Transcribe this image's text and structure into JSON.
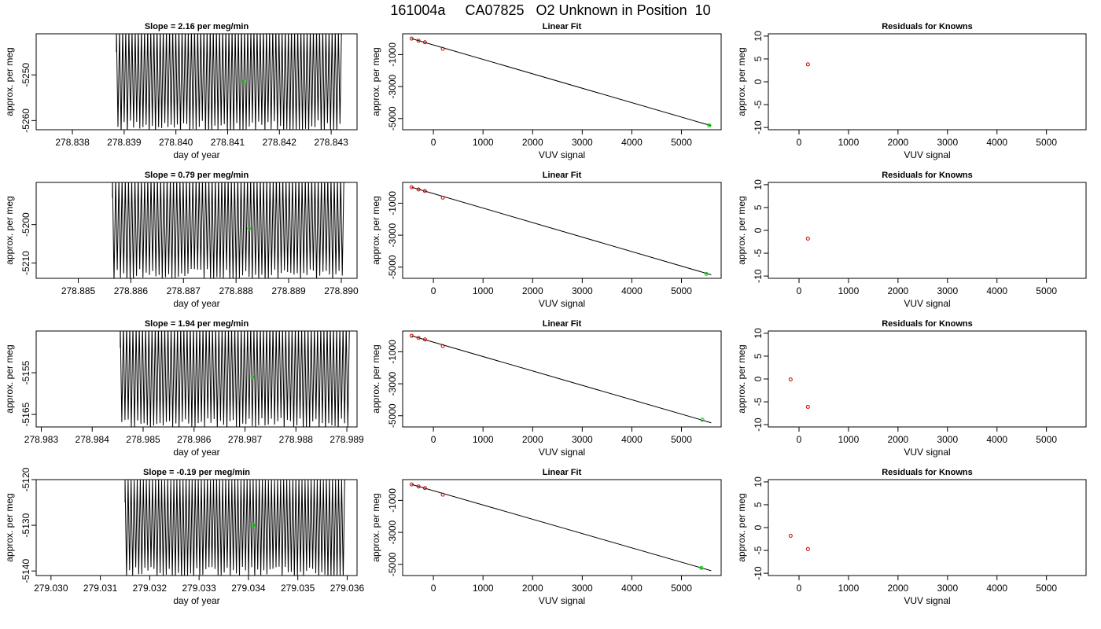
{
  "title": "161004a     CA07825   O2 Unknown in Position  10",
  "colors": {
    "trace": "#000000",
    "unknown_point": "#22cc22",
    "known_point": "#cc0000"
  },
  "chart_data": [
    {
      "type": "line",
      "title": "Slope =  2.16  per meg/min",
      "xlabel": "day of year",
      "ylabel": "approx. per meg",
      "xlim": [
        278.8373,
        278.8435
      ],
      "ylim": [
        -5262,
        -5241
      ],
      "xticks": [
        "278.838",
        "278.839",
        "278.840",
        "278.841",
        "278.842",
        "278.843"
      ],
      "yticks": [
        -5250,
        -5260
      ],
      "trace": {
        "x_start": 278.83885,
        "x_end": 278.8432,
        "y_low": -5262,
        "y_high": -5241,
        "cycles": 72
      },
      "highlight_point": {
        "x": 278.84132,
        "y": -5251.5
      }
    },
    {
      "type": "scatter",
      "title": "Linear Fit",
      "xlabel": "VUV signal",
      "ylabel": "approx. per meg",
      "xlim": [
        -620,
        5800
      ],
      "ylim": [
        -5700,
        300
      ],
      "xticks": [
        0,
        1000,
        2000,
        3000,
        4000,
        5000
      ],
      "yticks": [
        -1000,
        -3000,
        -5000
      ],
      "knowns": [
        {
          "x": -440,
          "y": 0
        },
        {
          "x": -300,
          "y": -130
        },
        {
          "x": -170,
          "y": -230
        },
        {
          "x": 190,
          "y": -640
        }
      ],
      "unknown": {
        "x": 5560,
        "y": -5430
      },
      "fit_line": {
        "x": [
          -440,
          5600
        ],
        "y": [
          0,
          -5450
        ]
      }
    },
    {
      "type": "scatter",
      "title": "Residuals for Knowns",
      "xlabel": "VUV signal",
      "ylabel": "approx. per meg",
      "xlim": [
        -620,
        5800
      ],
      "ylim": [
        -10.5,
        10.5
      ],
      "xticks": [
        0,
        1000,
        2000,
        3000,
        4000,
        5000
      ],
      "yticks": [
        10,
        5,
        0,
        -5,
        -10
      ],
      "points": [
        {
          "x": 180,
          "y": 3.8
        }
      ]
    },
    {
      "type": "line",
      "title": "Slope =  0.79  per meg/min",
      "xlabel": "day of year",
      "ylabel": "approx. per meg",
      "xlim": [
        278.8842,
        278.8903
      ],
      "ylim": [
        -5214,
        -5189
      ],
      "xticks": [
        "278.885",
        "278.886",
        "278.887",
        "278.888",
        "278.889",
        "278.890"
      ],
      "yticks": [
        -5200,
        -5210
      ],
      "trace": {
        "x_start": 278.88565,
        "x_end": 278.89005,
        "y_low": -5214,
        "y_high": -5189,
        "cycles": 72
      },
      "highlight_point": {
        "x": 278.88825,
        "y": -5201
      }
    },
    {
      "type": "scatter",
      "title": "Linear Fit",
      "xlabel": "VUV signal",
      "ylabel": "approx. per meg",
      "xlim": [
        -620,
        5800
      ],
      "ylim": [
        -5700,
        300
      ],
      "xticks": [
        0,
        1000,
        2000,
        3000,
        4000,
        5000
      ],
      "yticks": [
        -1000,
        -3000,
        -5000
      ],
      "knowns": [
        {
          "x": -440,
          "y": 0
        },
        {
          "x": -300,
          "y": -140
        },
        {
          "x": -170,
          "y": -240
        },
        {
          "x": 190,
          "y": -650
        }
      ],
      "unknown": {
        "x": 5500,
        "y": -5420
      },
      "fit_line": {
        "x": [
          -440,
          5600
        ],
        "y": [
          0,
          -5480
        ]
      }
    },
    {
      "type": "scatter",
      "title": "Residuals for Knowns",
      "xlabel": "VUV signal",
      "ylabel": "approx. per meg",
      "xlim": [
        -620,
        5800
      ],
      "ylim": [
        -10.5,
        10.5
      ],
      "xticks": [
        0,
        1000,
        2000,
        3000,
        4000,
        5000
      ],
      "yticks": [
        10,
        5,
        0,
        -5,
        -10
      ],
      "points": [
        {
          "x": 180,
          "y": -1.8
        }
      ]
    },
    {
      "type": "line",
      "title": "Slope =  1.94  per meg/min",
      "xlabel": "day of year",
      "ylabel": "approx. per meg",
      "xlim": [
        278.9829,
        278.9892
      ],
      "ylim": [
        -5168,
        -5145
      ],
      "xticks": [
        "278.983",
        "278.984",
        "278.985",
        "278.986",
        "278.987",
        "278.988",
        "278.989"
      ],
      "yticks": [
        -5155,
        -5165
      ],
      "trace": {
        "x_start": 278.98455,
        "x_end": 278.98905,
        "y_low": -5168,
        "y_high": -5145,
        "cycles": 72
      },
      "highlight_point": {
        "x": 278.98715,
        "y": -5156
      }
    },
    {
      "type": "scatter",
      "title": "Linear Fit",
      "xlabel": "VUV signal",
      "ylabel": "approx. per meg",
      "xlim": [
        -620,
        5800
      ],
      "ylim": [
        -5700,
        300
      ],
      "xticks": [
        0,
        1000,
        2000,
        3000,
        4000,
        5000
      ],
      "yticks": [
        -1000,
        -3000,
        -5000
      ],
      "knowns": [
        {
          "x": -440,
          "y": 0
        },
        {
          "x": -300,
          "y": -130
        },
        {
          "x": -170,
          "y": -230
        },
        {
          "x": 190,
          "y": -640
        }
      ],
      "unknown": {
        "x": 5420,
        "y": -5250
      },
      "fit_line": {
        "x": [
          -440,
          5600
        ],
        "y": [
          0,
          -5440
        ]
      }
    },
    {
      "type": "scatter",
      "title": "Residuals for Knowns",
      "xlabel": "VUV signal",
      "ylabel": "approx. per meg",
      "xlim": [
        -620,
        5800
      ],
      "ylim": [
        -10.5,
        10.5
      ],
      "xticks": [
        0,
        1000,
        2000,
        3000,
        4000,
        5000
      ],
      "yticks": [
        10,
        5,
        0,
        -5,
        -10
      ],
      "points": [
        {
          "x": -170,
          "y": -0.1
        },
        {
          "x": 180,
          "y": -6.1
        }
      ]
    },
    {
      "type": "line",
      "title": "Slope =  -0.19  per meg/min",
      "xlabel": "day of year",
      "ylabel": "approx. per meg",
      "xlim": [
        279.0297,
        279.0362
      ],
      "ylim": [
        -5141,
        -5120
      ],
      "xticks": [
        "279.030",
        "279.031",
        "279.032",
        "279.033",
        "279.034",
        "279.035",
        "279.036"
      ],
      "yticks": [
        -5120,
        -5130,
        -5140
      ],
      "trace": {
        "x_start": 279.0315,
        "x_end": 279.03595,
        "y_low": -5141,
        "y_high": -5121,
        "cycles": 72
      },
      "highlight_point": {
        "x": 279.0341,
        "y": -5130
      }
    },
    {
      "type": "scatter",
      "title": "Linear Fit",
      "xlabel": "VUV signal",
      "ylabel": "approx. per meg",
      "xlim": [
        -620,
        5800
      ],
      "ylim": [
        -5700,
        300
      ],
      "xticks": [
        0,
        1000,
        2000,
        3000,
        4000,
        5000
      ],
      "yticks": [
        -1000,
        -3000,
        -5000
      ],
      "knowns": [
        {
          "x": -440,
          "y": 0
        },
        {
          "x": -300,
          "y": -130
        },
        {
          "x": -170,
          "y": -230
        },
        {
          "x": 190,
          "y": -640
        }
      ],
      "unknown": {
        "x": 5400,
        "y": -5220
      },
      "fit_line": {
        "x": [
          -440,
          5600
        ],
        "y": [
          0,
          -5400
        ]
      }
    },
    {
      "type": "scatter",
      "title": "Residuals for Knowns",
      "xlabel": "VUV signal",
      "ylabel": "approx. per meg",
      "xlim": [
        -620,
        5800
      ],
      "ylim": [
        -10.5,
        10.5
      ],
      "xticks": [
        0,
        1000,
        2000,
        3000,
        4000,
        5000
      ],
      "yticks": [
        10,
        5,
        0,
        -5,
        -10
      ],
      "points": [
        {
          "x": -170,
          "y": -1.8
        },
        {
          "x": 180,
          "y": -4.7
        }
      ]
    }
  ]
}
